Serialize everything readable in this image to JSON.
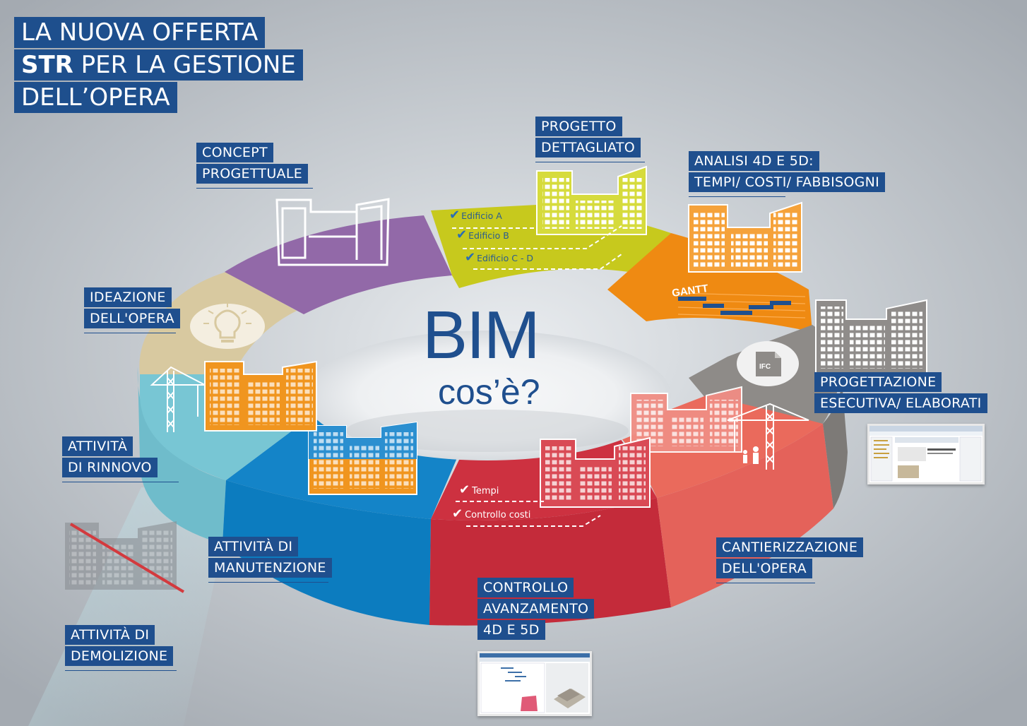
{
  "title": {
    "line1": "LA NUOVA OFFERTA",
    "line2_bold": "STR",
    "line2_rest": " PER LA GESTIONE",
    "line3": "DELL’OPERA"
  },
  "center": {
    "bim": "BIM",
    "cose": "cos’è?"
  },
  "phases": {
    "concept": [
      "CONCEPT",
      "PROGETTUALE"
    ],
    "progetto": [
      "PROGETTO",
      "DETTAGLIATO"
    ],
    "analisi": [
      "ANALISI 4D E 5D:",
      "TEMPI/ COSTI/ FABBISOGNI"
    ],
    "ideazione": [
      "IDEAZIONE",
      "DELL'OPERA"
    ],
    "esecutiva": [
      "PROGETTAZIONE",
      "ESECUTIVA/ ELABORATI"
    ],
    "rinnovo": [
      "ATTIVITÀ",
      "DI RINNOVO"
    ],
    "manutenzione": [
      "ATTIVITÀ DI",
      "MANUTENZIONE"
    ],
    "cantierizzazione": [
      "CANTIERIZZAZIONE",
      "DELL'OPERA"
    ],
    "controllo": [
      "CONTROLLO",
      "AVANZAMENTO",
      "4D E 5D"
    ],
    "demolizione": [
      "ATTIVITÀ DI",
      "DEMOLIZIONE"
    ]
  },
  "checklist_progetto": [
    "Edificio A",
    "Edificio B",
    "Edificio C - D"
  ],
  "checklist_controllo": [
    "Tempi",
    "Controllo costi"
  ],
  "badges": {
    "gantt": "GANTT",
    "ifc": "IFC"
  },
  "colors": {
    "purple": "#9269a8",
    "lime": "#c7c91d",
    "orange": "#ef8a12",
    "gray": "#8e8b88",
    "salmon": "#ea6a5c",
    "red": "#cd3140",
    "blue": "#1484c8",
    "cyan": "#78c6d4",
    "tan": "#d8c9a0",
    "navy": "#1f4f8e"
  },
  "icons": [
    "building-icon",
    "crane-icon",
    "lightbulb-icon",
    "check-icon",
    "gantt-chart-icon",
    "ifc-file-icon",
    "worker-icon",
    "demolished-building-icon"
  ]
}
